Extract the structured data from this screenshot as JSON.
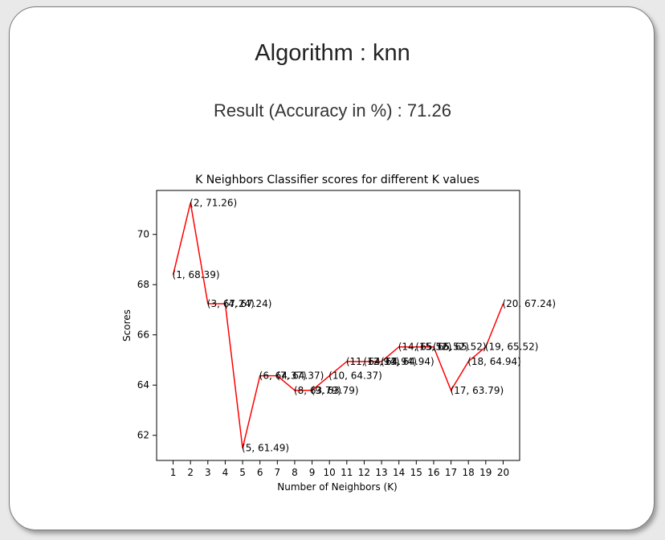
{
  "page": {
    "heading": "Algorithm : knn",
    "result_text": "Result (Accuracy in %) : 71.26"
  },
  "chart_data": {
    "type": "line",
    "title": "K Neighbors Classifier scores for different K values",
    "xlabel": "Number of Neighbors (K)",
    "ylabel": "Scores",
    "line_color": "#ff0000",
    "x": [
      1,
      2,
      3,
      4,
      5,
      6,
      7,
      8,
      9,
      10,
      11,
      12,
      13,
      14,
      15,
      16,
      17,
      18,
      19,
      20
    ],
    "y": [
      68.39,
      71.26,
      67.24,
      67.24,
      61.49,
      64.37,
      64.37,
      63.79,
      63.79,
      64.37,
      64.94,
      64.94,
      64.94,
      65.52,
      65.52,
      65.52,
      63.79,
      64.94,
      65.52,
      67.24
    ],
    "point_labels": [
      "(1, 68.39)",
      "(2, 71.26)",
      "(3, 67.24)",
      "(4, 67.24)",
      "(5, 61.49)",
      "(6, 64.37)",
      "(7, 64.37)",
      "(8, 63.79)",
      "(9, 63.79)",
      "(10, 64.37)",
      "(11, 64.94)",
      "(12, 64.94)",
      "(13, 64.94)",
      "(14, 65.52)",
      "(15, 65.52)",
      "(16, 65.52)",
      "(17, 63.79)",
      "(18, 64.94)",
      "(19, 65.52)",
      "(20, 67.24)"
    ],
    "xticks": [
      1,
      2,
      3,
      4,
      5,
      6,
      7,
      8,
      9,
      10,
      11,
      12,
      13,
      14,
      15,
      16,
      17,
      18,
      19,
      20
    ],
    "yticks": [
      62,
      64,
      66,
      68,
      70
    ],
    "xlim": [
      0.05,
      20.95
    ],
    "ylim": [
      61.0,
      71.75
    ],
    "grid": false,
    "legend": "none"
  }
}
